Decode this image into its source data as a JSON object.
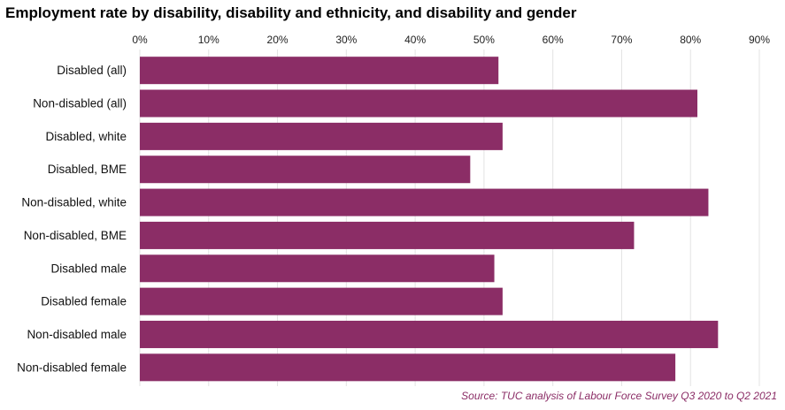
{
  "chart_data": {
    "type": "bar",
    "orientation": "horizontal",
    "title": "Employment rate by disability, disability and ethnicity, and disability and gender",
    "categories": [
      "Disabled (all)",
      "Non-disabled (all)",
      "Disabled, white",
      "Disabled, BME",
      "Non-disabled, white",
      "Non-disabled, BME",
      "Disabled male",
      "Disabled female",
      "Non-disabled male",
      "Non-disabled female"
    ],
    "values": [
      52.1,
      81.0,
      52.7,
      48.0,
      82.6,
      71.8,
      51.5,
      52.7,
      84.0,
      77.8
    ],
    "xlim": [
      0,
      90
    ],
    "x_ticks": [
      0,
      10,
      20,
      30,
      40,
      50,
      60,
      70,
      80,
      90
    ],
    "x_tick_labels": [
      "0%",
      "10%",
      "20%",
      "30%",
      "40%",
      "50%",
      "60%",
      "70%",
      "80%",
      "90%"
    ],
    "x_axis_position": "top",
    "xlabel": "",
    "ylabel": "",
    "grid": true,
    "legend": "none",
    "bar_color": "#8B2D66",
    "source": "Source: TUC analysis of Labour Force Survey Q3 2020 to Q2 2021"
  },
  "colors": {
    "bar": "#8B2D66",
    "gridline": "#e3e3e3",
    "source_text": "#8B2D66"
  }
}
